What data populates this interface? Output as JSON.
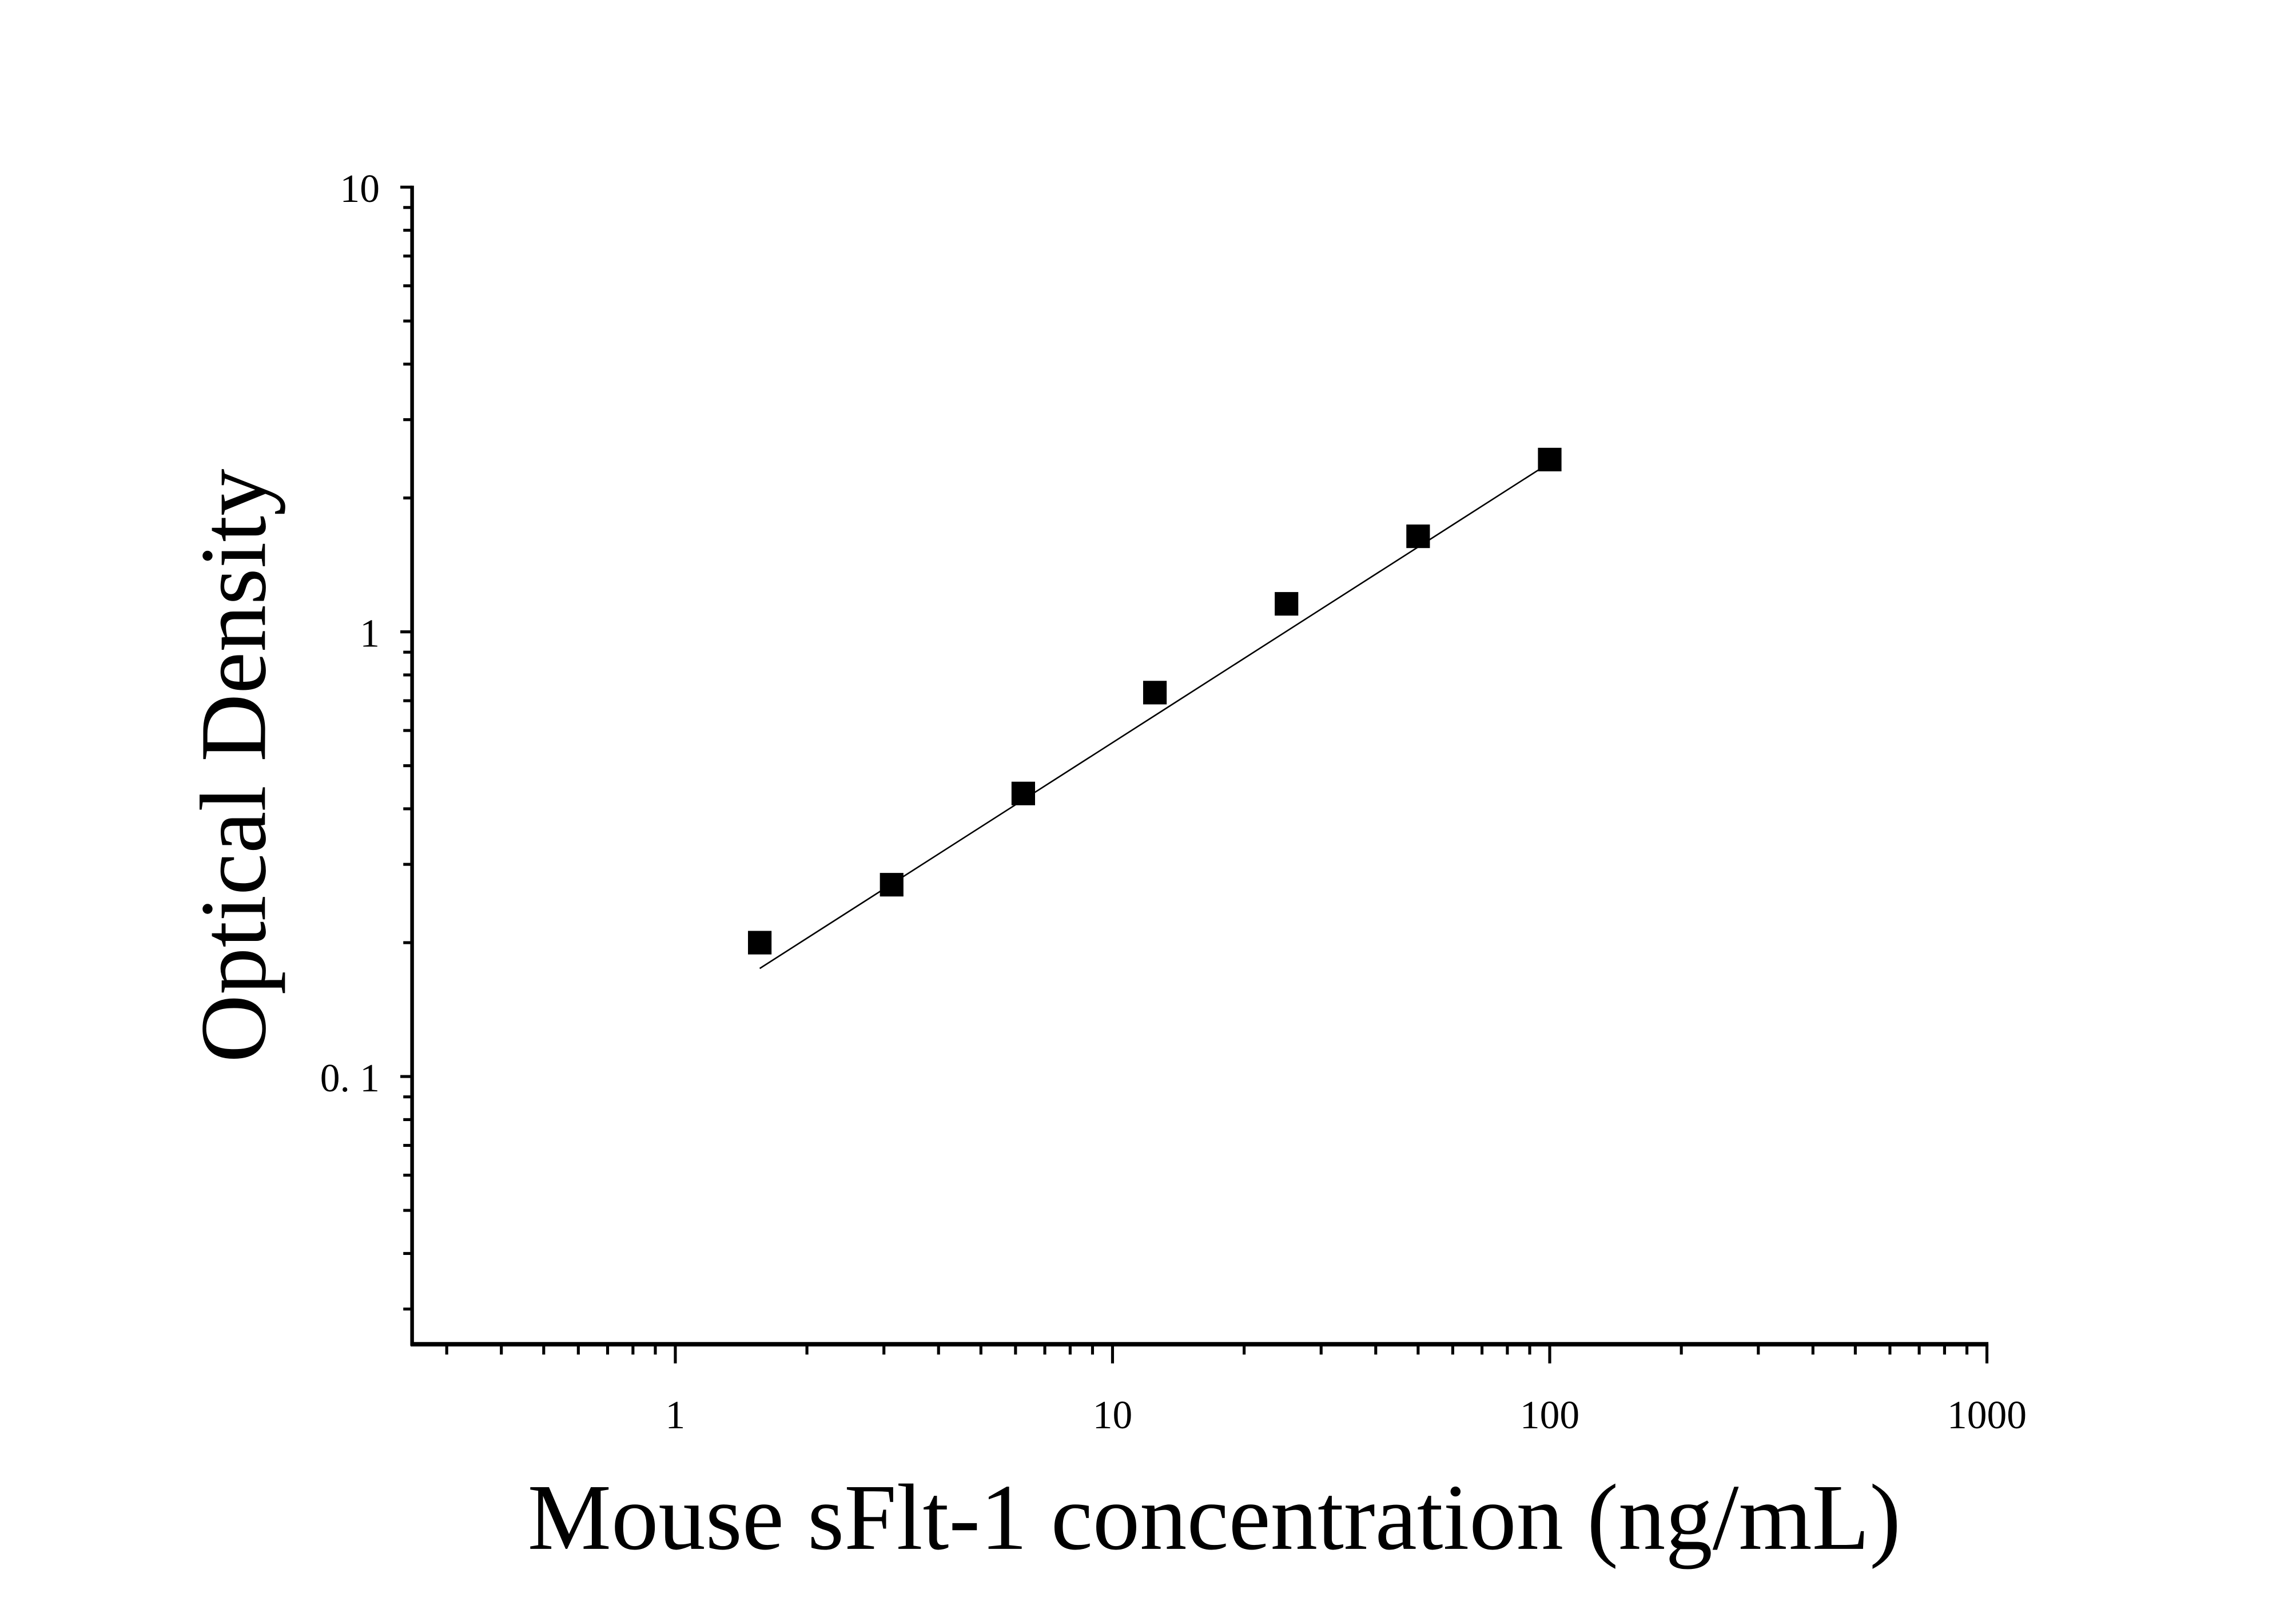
{
  "chart_data": {
    "type": "scatter",
    "title": "",
    "xlabel": "Mouse sFlt-1 concentration (ng/mL)",
    "ylabel": "Optical Density",
    "x_scale": "log",
    "y_scale": "log",
    "xlim": [
      0.25,
      1000
    ],
    "ylim": [
      0.025,
      10
    ],
    "x_ticks": [
      {
        "value": 1,
        "label": "1"
      },
      {
        "value": 10,
        "label": "10"
      },
      {
        "value": 100,
        "label": "100"
      },
      {
        "value": 1000,
        "label": "1000"
      }
    ],
    "y_ticks": [
      {
        "value": 0.1,
        "label": "0. 1"
      },
      {
        "value": 1,
        "label": "1"
      },
      {
        "value": 10,
        "label": "10"
      }
    ],
    "grid": false,
    "legend": "none",
    "marker": "square",
    "color": "#000000",
    "series": [
      {
        "x": [
          1.56,
          3.125,
          6.25,
          12.5,
          25,
          50,
          100
        ],
        "y": [
          0.2,
          0.27,
          0.433,
          0.73,
          1.156,
          1.64,
          2.44
        ]
      }
    ],
    "fit_line": {
      "x": [
        1.56,
        100
      ],
      "y": [
        0.175,
        2.4
      ]
    }
  }
}
